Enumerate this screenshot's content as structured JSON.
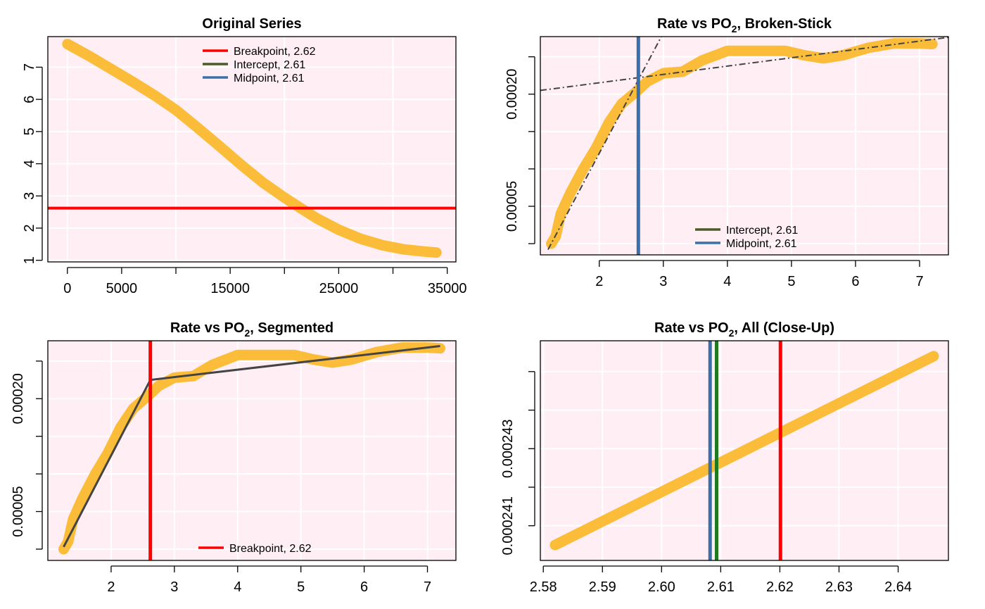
{
  "chart_data": [
    {
      "id": "p1",
      "type": "scatter",
      "title": "Original Series",
      "xlabel": "",
      "ylabel": "",
      "xlim": [
        -1800,
        35800
      ],
      "ylim": [
        0.95,
        7.95
      ],
      "x_ticks": [
        0,
        5000,
        15000,
        25000,
        35000
      ],
      "x_tick_labels": [
        "0",
        "5000",
        "15000",
        "25000",
        "35000"
      ],
      "x_grid": [
        0,
        10000,
        20000,
        30000
      ],
      "y_ticks": [
        1,
        2,
        3,
        4,
        5,
        6,
        7
      ],
      "y_tick_labels": [
        "1",
        "2",
        "3",
        "4",
        "5",
        "6",
        "7"
      ],
      "grid": true,
      "background": "#ffeef3",
      "series": [
        {
          "color": "#fbb829",
          "points": [
            [
              0,
              7.72
            ],
            [
              2000,
              7.35
            ],
            [
              4000,
              6.95
            ],
            [
              6000,
              6.55
            ],
            [
              8000,
              6.13
            ],
            [
              10000,
              5.67
            ],
            [
              12000,
              5.12
            ],
            [
              14000,
              4.55
            ],
            [
              16000,
              3.97
            ],
            [
              18000,
              3.42
            ],
            [
              20000,
              2.95
            ],
            [
              21500,
              2.62
            ],
            [
              23000,
              2.3
            ],
            [
              25000,
              1.95
            ],
            [
              27000,
              1.67
            ],
            [
              29000,
              1.47
            ],
            [
              31000,
              1.34
            ],
            [
              33000,
              1.27
            ],
            [
              34000,
              1.24
            ]
          ]
        }
      ],
      "hlines": [
        {
          "y": 2.62,
          "color": "#ff0000"
        }
      ],
      "vlines": [],
      "legend": {
        "position": "top-center",
        "entries": [
          {
            "label": "Breakpoint, 2.62",
            "color": "#ff0000"
          },
          {
            "label": "Intercept, 2.61",
            "color": "#4a5a28"
          },
          {
            "label": "Midpoint, 2.61",
            "color": "#3a6fa8"
          }
        ]
      }
    },
    {
      "id": "p2",
      "type": "scatter",
      "title": "Rate vs PO",
      "title_sub": "2",
      "title_suffix": ", Broken-Stick",
      "xlabel": "",
      "ylabel": "",
      "xlim": [
        1.08,
        7.45
      ],
      "ylim": [
        -1.5e-05,
        0.000277
      ],
      "x_ticks": [
        2,
        3,
        4,
        5,
        6,
        7
      ],
      "x_tick_labels": [
        "2",
        "3",
        "4",
        "5",
        "6",
        "7"
      ],
      "x_grid": [
        2,
        3,
        4,
        5,
        6,
        7
      ],
      "y_ticks": [
        5e-05,
        0.0002
      ],
      "y_tick_labels": [
        "0.00005",
        "0.00020"
      ],
      "y_grid": [
        0,
        5e-05,
        0.0001,
        0.00015,
        0.0002,
        0.00025
      ],
      "grid": true,
      "background": "#ffeef3",
      "series": [
        {
          "color": "#fbb829",
          "points": [
            [
              1.25,
              0
            ],
            [
              1.32,
              1e-05
            ],
            [
              1.4,
              4e-05
            ],
            [
              1.55,
              6.8e-05
            ],
            [
              1.75,
              0.0001
            ],
            [
              1.95,
              0.000128
            ],
            [
              2.15,
              0.000162
            ],
            [
              2.35,
              0.000187
            ],
            [
              2.6,
              0.000205
            ],
            [
              2.75,
              0.000217
            ],
            [
              3.0,
              0.000228
            ],
            [
              3.3,
              0.00023
            ],
            [
              3.6,
              0.000245
            ],
            [
              4.0,
              0.000258
            ],
            [
              4.5,
              0.000258
            ],
            [
              4.9,
              0.000258
            ],
            [
              5.2,
              0.000252
            ],
            [
              5.5,
              0.000248
            ],
            [
              5.8,
              0.000252
            ],
            [
              6.2,
              0.000262
            ],
            [
              6.6,
              0.000268
            ],
            [
              7.0,
              0.000268
            ],
            [
              7.2,
              0.000267
            ]
          ]
        }
      ],
      "abline_segments": [
        {
          "from": [
            1.2,
            -8e-06
          ],
          "to": [
            3.0,
            0.000282
          ],
          "color": "#444444",
          "style": "dashdot"
        },
        {
          "from": [
            1.08,
            0.000205
          ],
          "to": [
            7.45,
            0.000276
          ],
          "color": "#444444",
          "style": "dashdot"
        }
      ],
      "hlines": [],
      "vlines": [
        {
          "x": 2.61,
          "color": "#3a6fa8"
        }
      ],
      "legend": {
        "position": "bottom-center",
        "entries": [
          {
            "label": "Intercept, 2.61",
            "color": "#4a5a28"
          },
          {
            "label": "Midpoint, 2.61",
            "color": "#3a6fa8"
          }
        ]
      }
    },
    {
      "id": "p3",
      "type": "scatter",
      "title": "Rate vs PO",
      "title_sub": "2",
      "title_suffix": ", Segmented",
      "xlabel": "",
      "ylabel": "",
      "xlim": [
        1.0,
        7.45
      ],
      "ylim": [
        -1.5e-05,
        0.000277
      ],
      "x_ticks": [
        2,
        3,
        4,
        5,
        6,
        7
      ],
      "x_tick_labels": [
        "2",
        "3",
        "4",
        "5",
        "6",
        "7"
      ],
      "x_grid": [
        2,
        3,
        4,
        5,
        6,
        7
      ],
      "y_ticks": [
        5e-05,
        0.0002
      ],
      "y_tick_labels": [
        "0.00005",
        "0.00020"
      ],
      "y_grid": [
        0,
        5e-05,
        0.0001,
        0.00015,
        0.0002,
        0.00025
      ],
      "grid": true,
      "background": "#ffeef3",
      "series": [
        {
          "color": "#fbb829",
          "points": [
            [
              1.25,
              0
            ],
            [
              1.32,
              1e-05
            ],
            [
              1.4,
              4e-05
            ],
            [
              1.55,
              6.8e-05
            ],
            [
              1.75,
              0.0001
            ],
            [
              1.95,
              0.000128
            ],
            [
              2.15,
              0.000162
            ],
            [
              2.35,
              0.000187
            ],
            [
              2.6,
              0.000205
            ],
            [
              2.75,
              0.000217
            ],
            [
              3.0,
              0.000228
            ],
            [
              3.3,
              0.00023
            ],
            [
              3.6,
              0.000245
            ],
            [
              4.0,
              0.000258
            ],
            [
              4.5,
              0.000258
            ],
            [
              4.9,
              0.000258
            ],
            [
              5.2,
              0.000252
            ],
            [
              5.5,
              0.000248
            ],
            [
              5.8,
              0.000252
            ],
            [
              6.2,
              0.000262
            ],
            [
              6.6,
              0.000268
            ],
            [
              7.0,
              0.000268
            ],
            [
              7.2,
              0.000267
            ]
          ]
        }
      ],
      "fit_line": {
        "points": [
          [
            1.25,
            3e-06
          ],
          [
            2.62,
            0.000225
          ],
          [
            7.2,
            0.00027
          ]
        ],
        "color": "#444444"
      },
      "hlines": [],
      "vlines": [
        {
          "x": 2.62,
          "color": "#ff0000"
        }
      ],
      "legend": {
        "position": "bottom-center",
        "entries": [
          {
            "label": "Breakpoint, 2.62",
            "color": "#ff0000"
          }
        ]
      }
    },
    {
      "id": "p4",
      "type": "scatter",
      "title": "Rate vs PO",
      "title_sub": "2",
      "title_suffix": ", All (Close-Up)",
      "xlabel": "",
      "ylabel": "",
      "xlim": [
        2.5795,
        2.6485
      ],
      "ylim": [
        0.0002401,
        0.0002458
      ],
      "x_ticks": [
        2.58,
        2.59,
        2.6,
        2.61,
        2.62,
        2.63,
        2.64
      ],
      "x_tick_labels": [
        "2.58",
        "2.59",
        "2.60",
        "2.61",
        "2.62",
        "2.63",
        "2.64"
      ],
      "x_grid": [
        2.58,
        2.59,
        2.6,
        2.61,
        2.62,
        2.63,
        2.64
      ],
      "y_ticks": [
        0.000241,
        0.000243
      ],
      "y_tick_labels": [
        "0.000241",
        "0.000243"
      ],
      "y_grid": [
        0.000241,
        0.000242,
        0.000243,
        0.000244,
        0.000245
      ],
      "grid": true,
      "background": "#ffeef3",
      "series": [
        {
          "color": "#fbb829",
          "points": [
            [
              2.582,
              0.0002405
            ],
            [
              2.646,
              0.0002454
            ]
          ]
        }
      ],
      "hlines": [],
      "vlines": [
        {
          "x": 2.6082,
          "color": "#3a6fa8"
        },
        {
          "x": 2.6093,
          "color": "#1f7a1f"
        },
        {
          "x": 2.6201,
          "color": "#ff0000"
        }
      ],
      "legend": null
    }
  ]
}
